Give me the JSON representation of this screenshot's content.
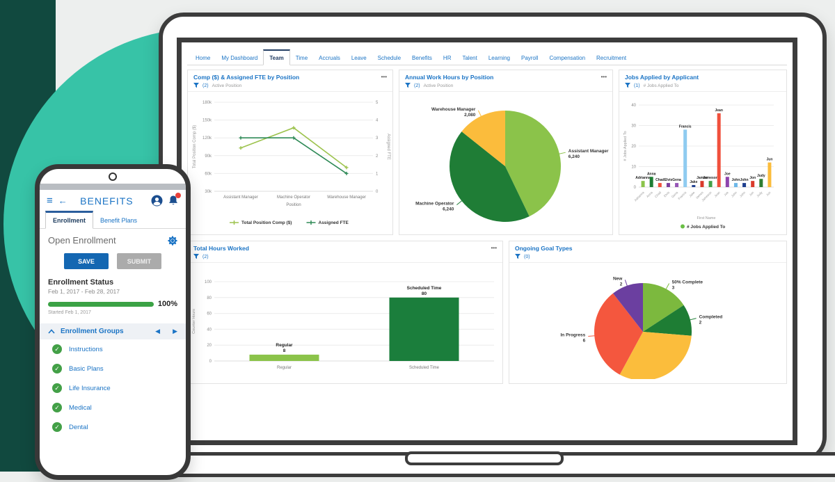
{
  "colors": {
    "accent_blue": "#1b74c5",
    "navy": "#223d63",
    "teal_circle": "#37c3a7",
    "teal_band": "#11493f",
    "green_check": "#43a047",
    "progress_green": "#3ba245",
    "save_blue": "#1467b2",
    "submit_gray": "#ababab"
  },
  "icons": {
    "menu": "≡",
    "back": "←",
    "prev": "◀",
    "next": "▶",
    "check": "✓",
    "dots": "•••"
  },
  "dashboard": {
    "nav": {
      "items": [
        "Home",
        "My Dashboard",
        "Team",
        "Time",
        "Accruals",
        "Leave",
        "Schedule",
        "Benefits",
        "HR",
        "Talent",
        "Learning",
        "Payroll",
        "Compensation",
        "Recruitment"
      ],
      "active": "Team"
    },
    "tiles": [
      {
        "title": "Comp ($) & Assigned FTE by Position",
        "filter_count": "(2)",
        "filter_label": "Active Position",
        "has_menu": true
      },
      {
        "title": "Annual Work Hours by Position",
        "filter_count": "(2)",
        "filter_label": "Active Position",
        "has_menu": true
      },
      {
        "title": "Jobs Applied by Applicant",
        "filter_count": "(1)",
        "filter_label": "# Jobs Applied To",
        "has_menu": false
      },
      {
        "title": "Total Hours Worked",
        "filter_count": "(2)",
        "filter_label": "",
        "has_menu": true
      },
      {
        "title": "Ongoing Goal Types",
        "filter_count": "(0)",
        "filter_label": "",
        "has_menu": false
      }
    ]
  },
  "chart_data": [
    {
      "type": "line",
      "title": "Comp ($) & Assigned FTE by Position",
      "categories": [
        "Assistant Manager",
        "Machine Operator",
        "Warehouse Manager"
      ],
      "series": [
        {
          "name": "Total Position Comp ($)",
          "axis": "left",
          "color": "#9dc34e",
          "values": [
            103000,
            137000,
            70000
          ]
        },
        {
          "name": "Assigned FTE",
          "axis": "right",
          "color": "#2f8a57",
          "values": [
            3,
            3,
            1
          ]
        }
      ],
      "xlabel": "Position",
      "ylabel_left": "Total Position Comp ($)",
      "ylabel_right": "Assigned FTE",
      "ylim_left": [
        30000,
        180000
      ],
      "yticks_left": [
        "30k",
        "60k",
        "90k",
        "120k",
        "150k",
        "180k"
      ],
      "ylim_right": [
        0,
        5
      ],
      "yticks_right": [
        0,
        1,
        2,
        3,
        4,
        5
      ],
      "grid": true,
      "legend_position": "bottom"
    },
    {
      "type": "pie",
      "title": "Annual Work Hours by Position",
      "slices": [
        {
          "label": "Assistant Manager",
          "value": 6240,
          "display": "6,240",
          "color": "#8bc34a"
        },
        {
          "label": "Machine Operator",
          "value": 6240,
          "display": "6,240",
          "color": "#1f7d36"
        },
        {
          "label": "Warehouse Manager",
          "value": 2080,
          "display": "2,080",
          "color": "#fbbc3c"
        }
      ]
    },
    {
      "type": "bar",
      "title": "Jobs Applied by Applicant",
      "xlabel": "First Name",
      "ylabel": "# Jobs Applied To",
      "ylim": [
        0,
        40
      ],
      "yticks": [
        0,
        10,
        20,
        30,
        40
      ],
      "legend": [
        {
          "label": "# Jobs Applied To",
          "color": "#6abf45"
        }
      ],
      "bars": [
        {
          "name": "Adrianna",
          "value": 3,
          "color": "#8bc34a"
        },
        {
          "name": "Anna",
          "value": 5,
          "color": "#1e7d34"
        },
        {
          "name": "Chad",
          "value": 2,
          "color": "#f0503c"
        },
        {
          "name": "Elvis",
          "value": 2,
          "color": "#7c3f9e"
        },
        {
          "name": "Gena",
          "value": 2,
          "color": "#9655b5"
        },
        {
          "name": "Francis",
          "value": 28,
          "color": "#8fcbf0"
        },
        {
          "name": "Jake",
          "value": 1,
          "color": "#1f3f8f"
        },
        {
          "name": "James",
          "value": 3,
          "color": "#d93a2b"
        },
        {
          "name": "Jameson",
          "value": 3,
          "color": "#43a047"
        },
        {
          "name": "Jean",
          "value": 36,
          "color": "#f0503c"
        },
        {
          "name": "Joe",
          "value": 5,
          "color": "#8e44ad"
        },
        {
          "name": "John",
          "value": 2,
          "color": "#6db7e8"
        },
        {
          "name": "John",
          "value": 2,
          "color": "#1f3f8f"
        },
        {
          "name": "Jon",
          "value": 3,
          "color": "#d93a2b"
        },
        {
          "name": "Judy",
          "value": 4,
          "color": "#2e7d32"
        },
        {
          "name": "Jun",
          "value": 12,
          "color": "#fbbc3c"
        }
      ]
    },
    {
      "type": "bar",
      "title": "Total Hours Worked",
      "ylabel": "Counter Hours",
      "ylim": [
        0,
        100
      ],
      "yticks": [
        0,
        20,
        40,
        60,
        80,
        100
      ],
      "bars": [
        {
          "name": "Regular",
          "value": 8,
          "color": "#8bc34a"
        },
        {
          "name": "Scheduled Time",
          "value": 80,
          "color": "#1b7e3c"
        }
      ]
    },
    {
      "type": "pie",
      "title": "Ongoing Goal Types",
      "slices": [
        {
          "label": "50% Complete",
          "value": 3,
          "display": "3",
          "color": "#7cb93e"
        },
        {
          "label": "Completed",
          "value": 2,
          "display": "2",
          "color": "#1e7d34"
        },
        {
          "label": "",
          "value": 6,
          "display": "",
          "color": "#fbbd3c"
        },
        {
          "label": "In Progress",
          "value": 6,
          "display": "6",
          "color": "#f4573e"
        },
        {
          "label": "New",
          "value": 2,
          "display": "2",
          "color": "#6b3fa0"
        }
      ]
    }
  ],
  "phone": {
    "title": "BENEFITS",
    "tabs": [
      {
        "label": "Enrollment",
        "active": true
      },
      {
        "label": "Benefit Plans",
        "active": false
      }
    ],
    "section_title": "Open Enrollment",
    "buttons": {
      "save": "SAVE",
      "submit": "SUBMIT"
    },
    "status": {
      "heading": "Enrollment Status",
      "range": "Feb 1, 2017 - Feb 28, 2017",
      "percent": "100%",
      "progress": 100,
      "started": "Started Feb 1, 2017"
    },
    "groups": {
      "heading": "Enrollment Groups",
      "items": [
        "Instructions",
        "Basic Plans",
        "Life Insurance",
        "Medical",
        "Dental"
      ]
    }
  }
}
